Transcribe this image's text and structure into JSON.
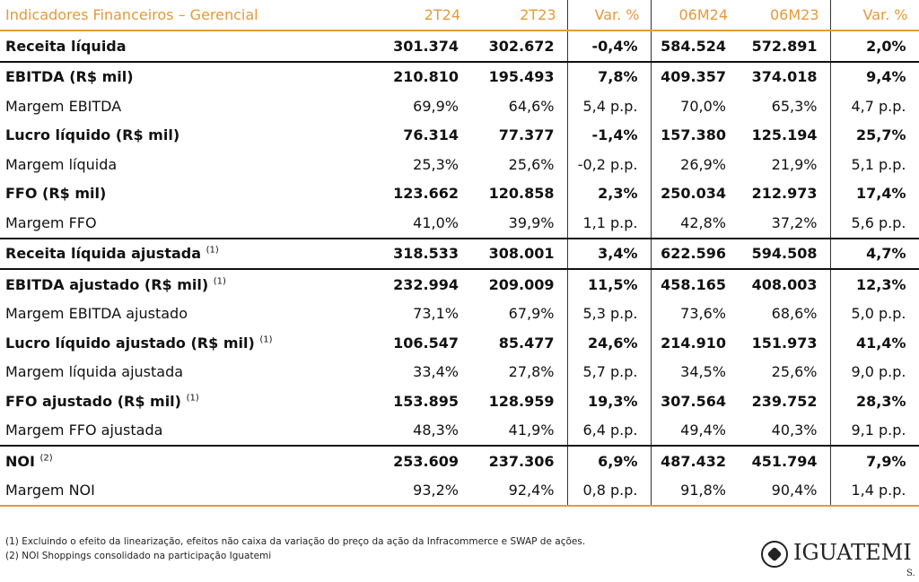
{
  "table": {
    "header": [
      "Indicadores Financeiros – Gerencial",
      "2T24",
      "2T23",
      "Var. %",
      "06M24",
      "06M23",
      "Var. %"
    ],
    "rows": [
      {
        "label": "Receita líquida",
        "values": [
          "301.374",
          "302.672",
          "-0,4%",
          "584.524",
          "572.891",
          "2,0%"
        ],
        "bold": true
      },
      {
        "label": "EBITDA (R$ mil)",
        "values": [
          "210.810",
          "195.493",
          "7,8%",
          "409.357",
          "374.018",
          "9,4%"
        ],
        "bold": true,
        "rule_above": true
      },
      {
        "label": "Margem EBITDA",
        "values": [
          "69,9%",
          "64,6%",
          "5,4 p.p.",
          "70,0%",
          "65,3%",
          "4,7 p.p."
        ]
      },
      {
        "label": "Lucro líquido (R$ mil)",
        "values": [
          "76.314",
          "77.377",
          "-1,4%",
          "157.380",
          "125.194",
          "25,7%"
        ],
        "bold": true
      },
      {
        "label": "Margem líquida",
        "values": [
          "25,3%",
          "25,6%",
          "-0,2 p.p.",
          "26,9%",
          "21,9%",
          "5,1 p.p."
        ]
      },
      {
        "label": "FFO (R$ mil)",
        "values": [
          "123.662",
          "120.858",
          "2,3%",
          "250.034",
          "212.973",
          "17,4%"
        ],
        "bold": true
      },
      {
        "label": "Margem FFO",
        "values": [
          "41,0%",
          "39,9%",
          "1,1 p.p.",
          "42,8%",
          "37,2%",
          "5,6 p.p."
        ]
      },
      {
        "label": "Receita líquida ajustada",
        "note": "(1)",
        "values": [
          "318.533",
          "308.001",
          "3,4%",
          "622.596",
          "594.508",
          "4,7%"
        ],
        "bold": true,
        "rule_above": true
      },
      {
        "label": "EBITDA ajustado (R$ mil)",
        "note": "(1)",
        "values": [
          "232.994",
          "209.009",
          "11,5%",
          "458.165",
          "408.003",
          "12,3%"
        ],
        "bold": true,
        "rule_above": true
      },
      {
        "label": "Margem EBITDA ajustado",
        "values": [
          "73,1%",
          "67,9%",
          "5,3 p.p.",
          "73,6%",
          "68,6%",
          "5,0 p.p."
        ]
      },
      {
        "label": "Lucro líquido ajustado (R$ mil)",
        "note": "(1)",
        "values": [
          "106.547",
          "85.477",
          "24,6%",
          "214.910",
          "151.973",
          "41,4%"
        ],
        "bold": true
      },
      {
        "label": "Margem líquida ajustada",
        "values": [
          "33,4%",
          "27,8%",
          "5,7 p.p.",
          "34,5%",
          "25,6%",
          "9,0 p.p."
        ]
      },
      {
        "label": "FFO ajustado (R$ mil)",
        "note": "(1)",
        "values": [
          "153.895",
          "128.959",
          "19,3%",
          "307.564",
          "239.752",
          "28,3%"
        ],
        "bold": true
      },
      {
        "label": "Margem FFO ajustada",
        "values": [
          "48,3%",
          "41,9%",
          "6,4 p.p.",
          "49,4%",
          "40,3%",
          "9,1 p.p."
        ]
      },
      {
        "label": "NOI",
        "note": "(2)",
        "values": [
          "253.609",
          "237.306",
          "6,9%",
          "487.432",
          "451.794",
          "7,9%"
        ],
        "bold": true,
        "rule_above": true
      },
      {
        "label": "Margem NOI",
        "values": [
          "93,2%",
          "92,4%",
          "0,8 p.p.",
          "91,8%",
          "90,4%",
          "1,4 p.p."
        ]
      }
    ]
  },
  "footnotes": [
    "(1) Excluindo o efeito da linearização, efeitos não caixa da variação do preço da ação da Infracommerce e SWAP de ações.",
    "(2) NOI Shoppings consolidado na participação Iguatemi"
  ],
  "logo": {
    "name": "IGUATEMI",
    "suffix": "S."
  }
}
